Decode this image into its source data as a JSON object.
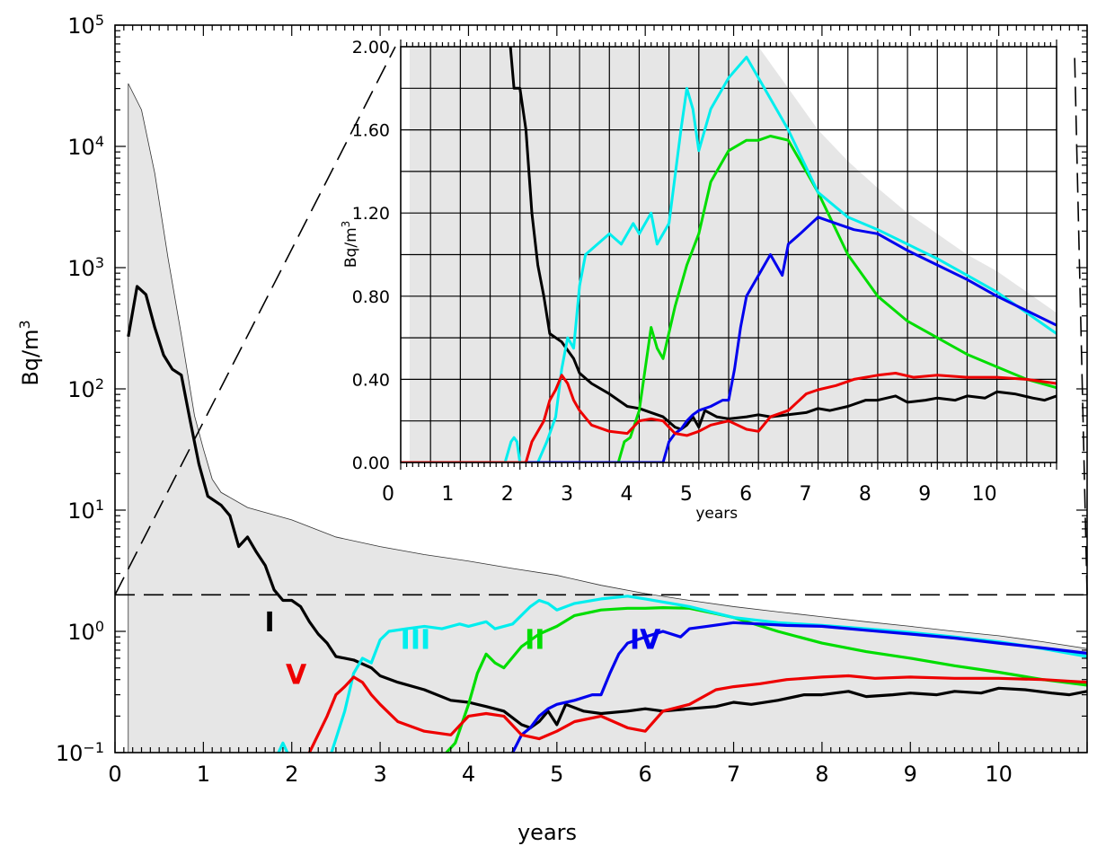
{
  "chart_data": [
    {
      "type": "line",
      "yscale": "log",
      "xlabel": "years",
      "ylabel": "Bq/m",
      "ylabel_sup": "3",
      "xlim": [
        0,
        11
      ],
      "ylim": [
        0.1,
        100000
      ],
      "x_ticks": [
        0,
        1,
        2,
        3,
        4,
        5,
        6,
        7,
        8,
        9,
        10
      ],
      "y_ticks": [
        {
          "value": 0.1,
          "base": "10",
          "exp": "−1"
        },
        {
          "value": 1,
          "base": "10",
          "exp": "0"
        },
        {
          "value": 10,
          "base": "10",
          "exp": "1"
        },
        {
          "value": 100,
          "base": "10",
          "exp": "2"
        },
        {
          "value": 1000,
          "base": "10",
          "exp": "3"
        },
        {
          "value": 10000,
          "base": "10",
          "exp": "4"
        },
        {
          "value": 100000,
          "base": "10",
          "exp": "5"
        }
      ],
      "reference_line_y": 2.0,
      "envelope": {
        "x": [
          0.15,
          0.3,
          0.45,
          0.6,
          0.75,
          0.9,
          1.0,
          1.1,
          1.2,
          1.5,
          2.0,
          2.5,
          3.0,
          3.5,
          4.0,
          4.5,
          5.0,
          5.5,
          6.0,
          6.5,
          7.0,
          7.5,
          8.0,
          8.5,
          9.0,
          9.5,
          10.0,
          10.5,
          11.0
        ],
        "y": [
          33000,
          20000,
          6000,
          1200,
          280,
          60,
          32,
          18,
          14,
          10.5,
          8.3,
          6.0,
          5.0,
          4.3,
          3.8,
          3.3,
          2.9,
          2.4,
          2.05,
          1.8,
          1.6,
          1.45,
          1.32,
          1.2,
          1.1,
          1.0,
          0.92,
          0.82,
          0.72
        ]
      },
      "series": [
        {
          "name": "I",
          "color": "#000000",
          "x": [
            0.15,
            0.25,
            0.35,
            0.45,
            0.55,
            0.65,
            0.75,
            0.85,
            0.95,
            1.05,
            1.2,
            1.3,
            1.4,
            1.5,
            1.6,
            1.7,
            1.8,
            1.9,
            2.0,
            2.1,
            2.2,
            2.3,
            2.4,
            2.5,
            2.7,
            2.9,
            3.0,
            3.2,
            3.5,
            3.8,
            4.0,
            4.2,
            4.4,
            4.6,
            4.7,
            4.8,
            4.9,
            5.0,
            5.1,
            5.3,
            5.5,
            5.8,
            6.0,
            6.2,
            6.5,
            6.8,
            7.0,
            7.2,
            7.5,
            7.8,
            8.0,
            8.3,
            8.5,
            8.8,
            9.0,
            9.3,
            9.5,
            9.8,
            10.0,
            10.3,
            10.6,
            10.8,
            11.0
          ],
          "y": [
            270,
            700,
            600,
            320,
            190,
            145,
            130,
            55,
            24,
            13,
            11,
            9,
            5,
            6,
            4.5,
            3.5,
            2.2,
            1.8,
            1.8,
            1.6,
            1.2,
            0.95,
            0.8,
            0.62,
            0.58,
            0.5,
            0.43,
            0.38,
            0.33,
            0.27,
            0.26,
            0.24,
            0.22,
            0.17,
            0.16,
            0.18,
            0.22,
            0.17,
            0.25,
            0.22,
            0.21,
            0.22,
            0.23,
            0.22,
            0.23,
            0.24,
            0.26,
            0.25,
            0.27,
            0.3,
            0.3,
            0.32,
            0.29,
            0.3,
            0.31,
            0.3,
            0.32,
            0.31,
            0.34,
            0.33,
            0.31,
            0.3,
            0.32
          ]
        },
        {
          "name": "II",
          "color": "#00dd00",
          "x": [
            3.75,
            3.85,
            4.0,
            4.1,
            4.2,
            4.3,
            4.4,
            4.6,
            4.8,
            5.0,
            5.2,
            5.5,
            5.8,
            6.0,
            6.2,
            6.5,
            6.8,
            7.0,
            7.5,
            8.0,
            8.5,
            9.0,
            9.5,
            10.0,
            10.5,
            11.0
          ],
          "y": [
            0.1,
            0.12,
            0.25,
            0.45,
            0.65,
            0.55,
            0.5,
            0.75,
            0.95,
            1.1,
            1.35,
            1.5,
            1.55,
            1.55,
            1.57,
            1.55,
            1.4,
            1.3,
            1.0,
            0.8,
            0.68,
            0.6,
            0.52,
            0.46,
            0.4,
            0.36
          ]
        },
        {
          "name": "III",
          "color": "#00eeee",
          "x": [
            1.85,
            1.9,
            1.95,
            2.0,
            2.3,
            2.45,
            2.6,
            2.7,
            2.8,
            2.9,
            3.0,
            3.1,
            3.3,
            3.5,
            3.7,
            3.9,
            4.0,
            4.2,
            4.3,
            4.5,
            4.7,
            4.8,
            4.9,
            5.0,
            5.2,
            5.5,
            5.8,
            6.0,
            6.5,
            7.0,
            7.5,
            8.0,
            8.5,
            9.0,
            9.5,
            10.0,
            10.5,
            11.0
          ],
          "y": [
            0.1,
            0.12,
            0.1,
            0.0,
            0.0,
            0.1,
            0.22,
            0.45,
            0.6,
            0.55,
            0.85,
            1.0,
            1.05,
            1.1,
            1.05,
            1.15,
            1.1,
            1.2,
            1.05,
            1.15,
            1.6,
            1.8,
            1.7,
            1.5,
            1.7,
            1.85,
            1.95,
            1.85,
            1.6,
            1.3,
            1.18,
            1.12,
            1.05,
            0.98,
            0.9,
            0.82,
            0.72,
            0.62
          ]
        },
        {
          "name": "IV",
          "color": "#0000ee",
          "x": [
            4.5,
            4.6,
            4.7,
            4.8,
            4.9,
            5.0,
            5.2,
            5.4,
            5.5,
            5.6,
            5.7,
            5.8,
            6.0,
            6.2,
            6.4,
            6.5,
            6.7,
            7.0,
            7.3,
            7.6,
            8.0,
            8.5,
            9.0,
            9.5,
            10.0,
            10.5,
            11.0
          ],
          "y": [
            0.1,
            0.14,
            0.16,
            0.2,
            0.23,
            0.25,
            0.27,
            0.3,
            0.3,
            0.45,
            0.65,
            0.8,
            0.9,
            1.0,
            0.9,
            1.05,
            1.1,
            1.18,
            1.15,
            1.12,
            1.1,
            1.02,
            0.95,
            0.88,
            0.8,
            0.73,
            0.66
          ]
        },
        {
          "name": "V",
          "color": "#ee0000",
          "x": [
            2.2,
            2.4,
            2.5,
            2.6,
            2.7,
            2.8,
            2.9,
            3.0,
            3.2,
            3.5,
            3.8,
            4.0,
            4.2,
            4.4,
            4.6,
            4.8,
            5.0,
            5.2,
            5.5,
            5.8,
            6.0,
            6.2,
            6.5,
            6.8,
            7.0,
            7.3,
            7.6,
            8.0,
            8.3,
            8.6,
            9.0,
            9.5,
            10.0,
            10.5,
            11.0
          ],
          "y": [
            0.1,
            0.2,
            0.3,
            0.35,
            0.42,
            0.38,
            0.3,
            0.25,
            0.18,
            0.15,
            0.14,
            0.2,
            0.21,
            0.2,
            0.14,
            0.13,
            0.15,
            0.18,
            0.2,
            0.16,
            0.15,
            0.22,
            0.25,
            0.33,
            0.35,
            0.37,
            0.4,
            0.42,
            0.43,
            0.41,
            0.42,
            0.41,
            0.41,
            0.4,
            0.38
          ]
        }
      ],
      "annotations": [
        {
          "text": "I",
          "x": 1.75,
          "y": 1.0,
          "color": "#000000"
        },
        {
          "text": "II",
          "x": 4.75,
          "y": 0.72,
          "color": "#00dd00"
        },
        {
          "text": "III",
          "x": 3.4,
          "y": 0.72,
          "color": "#00eeee"
        },
        {
          "text": "IV",
          "x": 6.0,
          "y": 0.72,
          "color": "#0000ee"
        },
        {
          "text": "V",
          "x": 2.05,
          "y": 0.37,
          "color": "#ee0000"
        }
      ]
    },
    {
      "type": "line",
      "role": "inset",
      "yscale": "linear",
      "xlabel": "years",
      "ylabel": "Bq/m",
      "ylabel_sup": "3",
      "xlim": [
        0,
        11
      ],
      "ylim": [
        0,
        2.0
      ],
      "x_ticks": [
        0,
        1,
        2,
        3,
        4,
        5,
        6,
        7,
        8,
        9,
        10
      ],
      "y_ticks": [
        {
          "value": 0.0,
          "label": "0.00"
        },
        {
          "value": 0.4,
          "label": "0.40"
        },
        {
          "value": 0.8,
          "label": "0.80"
        },
        {
          "value": 1.2,
          "label": "1.20"
        },
        {
          "value": 1.6,
          "label": "1.60"
        },
        {
          "value": 2.0,
          "label": "2.00"
        }
      ],
      "grid": true
    }
  ]
}
